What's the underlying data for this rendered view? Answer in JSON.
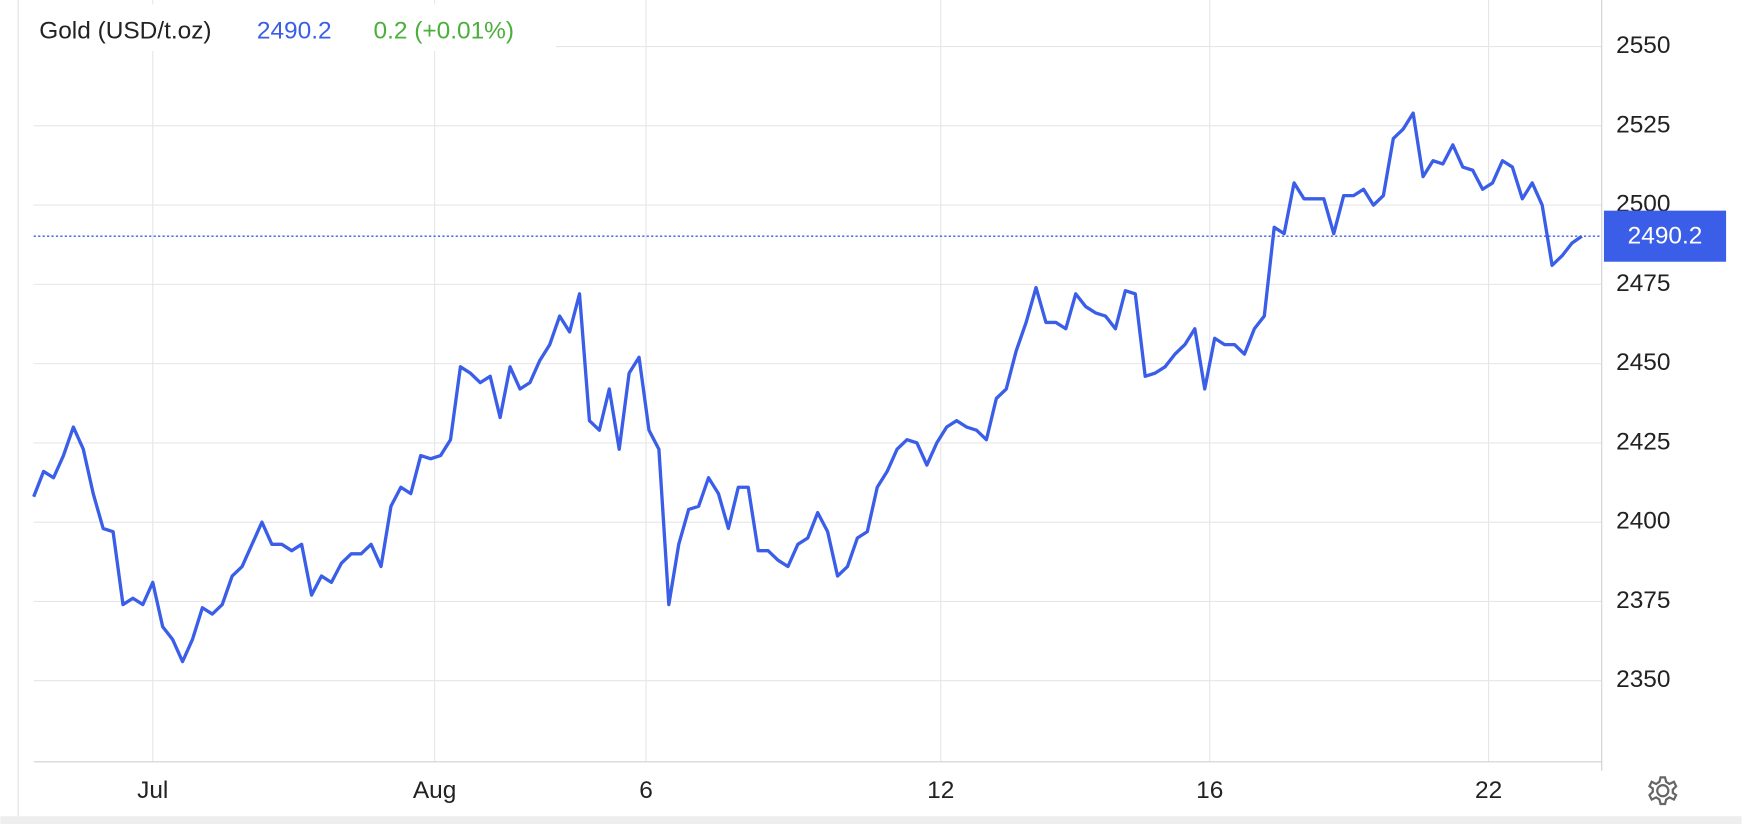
{
  "header": {
    "name": "Gold (USD/t.oz)",
    "change": "0.2 (+0.01%)"
  },
  "chart_data": {
    "type": "line",
    "series": [
      {
        "name": "Gold (USD/t.oz)",
        "color": "#3a5ee8",
        "values": [
          2408,
          2416,
          2414,
          2421,
          2430,
          2423,
          2409,
          2398,
          2397,
          2374,
          2376,
          2374,
          2381,
          2367,
          2363,
          2356,
          2363,
          2373,
          2371,
          2374,
          2383,
          2386,
          2393,
          2400,
          2393,
          2393,
          2391,
          2393,
          2377,
          2383,
          2381,
          2387,
          2390,
          2390,
          2393,
          2386,
          2405,
          2411,
          2409,
          2421,
          2420,
          2421,
          2426,
          2449,
          2447,
          2444,
          2446,
          2433,
          2449,
          2442,
          2444,
          2451,
          2456,
          2465,
          2460,
          2472,
          2432,
          2429,
          2442,
          2423,
          2447,
          2452,
          2429,
          2423,
          2374,
          2393,
          2404,
          2405,
          2414,
          2409,
          2398,
          2411,
          2411,
          2391,
          2391,
          2388,
          2386,
          2393,
          2395,
          2403,
          2397,
          2383,
          2386,
          2395,
          2397,
          2411,
          2416,
          2423,
          2426,
          2425,
          2418,
          2425,
          2430,
          2432,
          2430,
          2429,
          2426,
          2439,
          2442,
          2454,
          2463,
          2474,
          2463,
          2463,
          2461,
          2472,
          2468,
          2466,
          2465,
          2461,
          2473,
          2472,
          2446,
          2447,
          2449,
          2453,
          2456,
          2461,
          2442,
          2458,
          2456,
          2456,
          2453,
          2461,
          2465,
          2493,
          2491,
          2507,
          2502,
          2502,
          2502,
          2491,
          2503,
          2503,
          2505,
          2500,
          2503,
          2521,
          2524,
          2529,
          2509,
          2514,
          2513,
          2519,
          2512,
          2511,
          2505,
          2507,
          2514,
          2512,
          2502,
          2507,
          2500,
          2481,
          2484,
          2488,
          2490.2
        ]
      }
    ],
    "xlim": [
      0,
      158
    ],
    "xticks": [
      {
        "value": 12,
        "label": "Jul"
      },
      {
        "value": 40.4,
        "label": "Aug"
      },
      {
        "value": 61.7,
        "label": "6"
      },
      {
        "value": 91.4,
        "label": "12"
      },
      {
        "value": 118.5,
        "label": "16"
      },
      {
        "value": 146.6,
        "label": "22"
      }
    ],
    "ylim": [
      2324.4,
      2564.7
    ],
    "yticks": [
      2350,
      2375,
      2400,
      2425,
      2450,
      2475,
      2500,
      2525,
      2550
    ],
    "grid": true
  }
}
